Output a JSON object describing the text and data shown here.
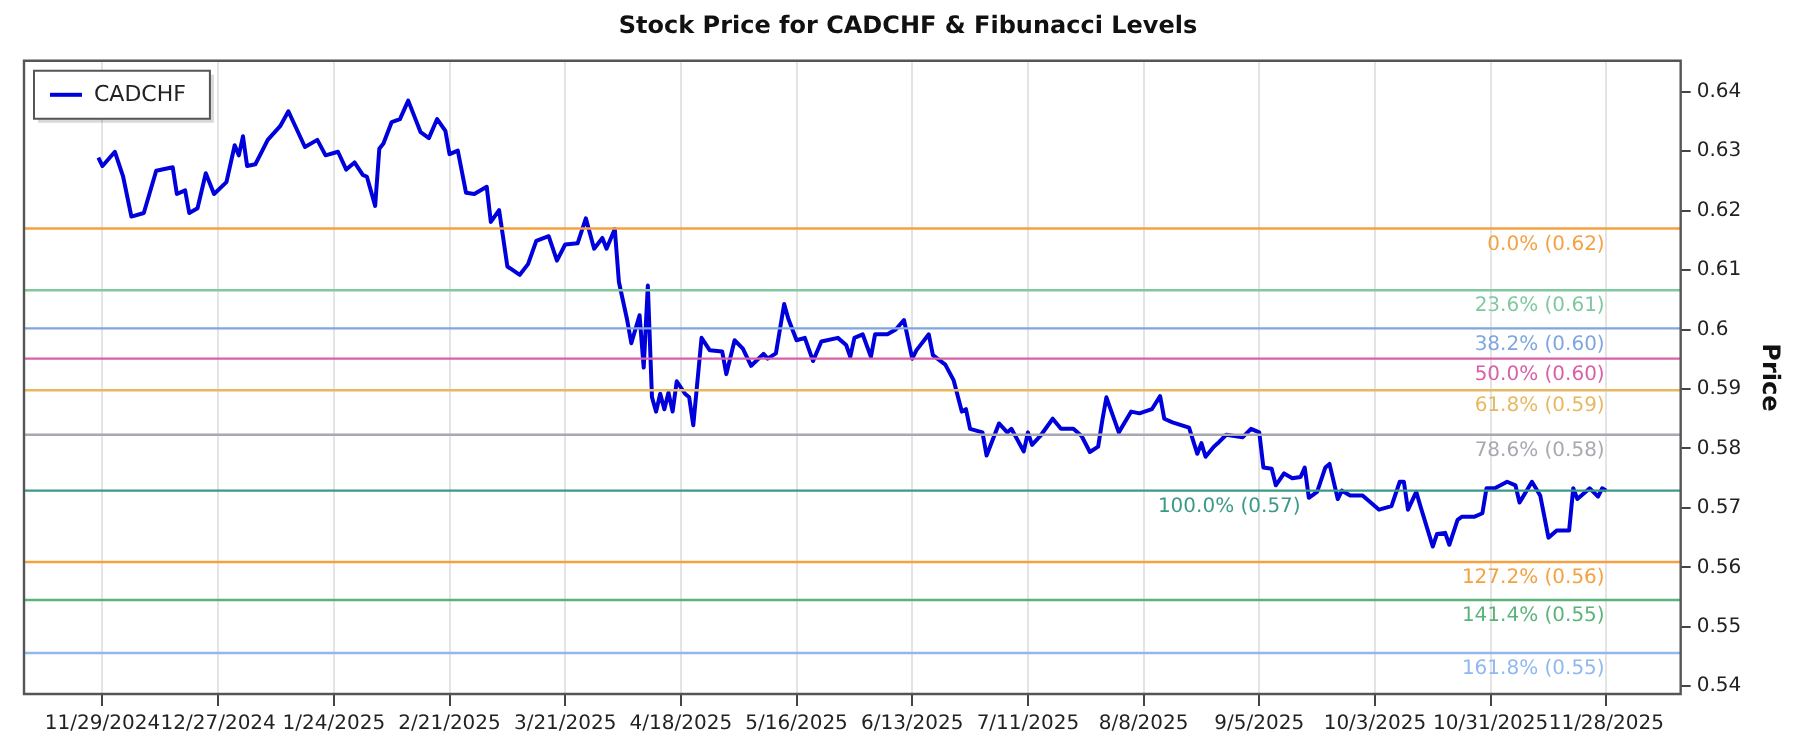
{
  "chart_data": {
    "type": "line",
    "title": "Stock Price for CADCHF & Fibunacci Levels",
    "ylabel": "Price",
    "series": [
      {
        "name": "CADCHF",
        "color": "#0000dd",
        "x": [
          "2024-11-28",
          "2024-11-29",
          "2024-12-02",
          "2024-12-04",
          "2024-12-06",
          "2024-12-09",
          "2024-12-12",
          "2024-12-16",
          "2024-12-17",
          "2024-12-19",
          "2024-12-20",
          "2024-12-22",
          "2024-12-24",
          "2024-12-26",
          "2024-12-29",
          "2024-12-31",
          "2025-01-01",
          "2025-01-02",
          "2025-01-03",
          "2025-01-05",
          "2025-01-08",
          "2025-01-11",
          "2025-01-13",
          "2025-01-14",
          "2025-01-17",
          "2025-01-20",
          "2025-01-22",
          "2025-01-25",
          "2025-01-27",
          "2025-01-29",
          "2025-01-31",
          "2025-02-01",
          "2025-02-03",
          "2025-02-04",
          "2025-02-05",
          "2025-02-07",
          "2025-02-09",
          "2025-02-11",
          "2025-02-14",
          "2025-02-16",
          "2025-02-18",
          "2025-02-20",
          "2025-02-21",
          "2025-02-23",
          "2025-02-25",
          "2025-02-27",
          "2025-03-02",
          "2025-03-03",
          "2025-03-05",
          "2025-03-07",
          "2025-03-10",
          "2025-03-12",
          "2025-03-14",
          "2025-03-17",
          "2025-03-19",
          "2025-03-21",
          "2025-03-24",
          "2025-03-26",
          "2025-03-28",
          "2025-03-30",
          "2025-03-31",
          "2025-04-02",
          "2025-04-03",
          "2025-04-05",
          "2025-04-06",
          "2025-04-08",
          "2025-04-09",
          "2025-04-10",
          "2025-04-11",
          "2025-04-12",
          "2025-04-13",
          "2025-04-14",
          "2025-04-15",
          "2025-04-16",
          "2025-04-17",
          "2025-04-19",
          "2025-04-20",
          "2025-04-21",
          "2025-04-23",
          "2025-04-25",
          "2025-04-28",
          "2025-04-29",
          "2025-05-01",
          "2025-05-03",
          "2025-05-05",
          "2025-05-08",
          "2025-05-09",
          "2025-05-11",
          "2025-05-13",
          "2025-05-14",
          "2025-05-16",
          "2025-05-18",
          "2025-05-20",
          "2025-05-22",
          "2025-05-26",
          "2025-05-28",
          "2025-05-29",
          "2025-05-30",
          "2025-06-01",
          "2025-06-03",
          "2025-06-04",
          "2025-06-07",
          "2025-06-09",
          "2025-06-11",
          "2025-06-13",
          "2025-06-14",
          "2025-06-17",
          "2025-06-18",
          "2025-06-21",
          "2025-06-23",
          "2025-06-25",
          "2025-06-26",
          "2025-06-27",
          "2025-06-30",
          "2025-07-01",
          "2025-07-04",
          "2025-07-06",
          "2025-07-07",
          "2025-07-10",
          "2025-07-11",
          "2025-07-12",
          "2025-07-14",
          "2025-07-17",
          "2025-07-19",
          "2025-07-22",
          "2025-07-24",
          "2025-07-26",
          "2025-07-28",
          "2025-07-29",
          "2025-07-30",
          "2025-08-02",
          "2025-08-05",
          "2025-08-07",
          "2025-08-10",
          "2025-08-12",
          "2025-08-13",
          "2025-08-15",
          "2025-08-19",
          "2025-08-21",
          "2025-08-22",
          "2025-08-23",
          "2025-08-25",
          "2025-08-26",
          "2025-08-28",
          "2025-09-01",
          "2025-09-03",
          "2025-09-05",
          "2025-09-06",
          "2025-09-08",
          "2025-09-09",
          "2025-09-11",
          "2025-09-13",
          "2025-09-15",
          "2025-09-16",
          "2025-09-17",
          "2025-09-19",
          "2025-09-21",
          "2025-09-22",
          "2025-09-24",
          "2025-09-25",
          "2025-09-27",
          "2025-09-30",
          "2025-10-04",
          "2025-10-07",
          "2025-10-09",
          "2025-10-10",
          "2025-10-11",
          "2025-10-13",
          "2025-10-14",
          "2025-10-17",
          "2025-10-18",
          "2025-10-20",
          "2025-10-21",
          "2025-10-23",
          "2025-10-24",
          "2025-10-27",
          "2025-10-29",
          "2025-10-30",
          "2025-11-01",
          "2025-11-04",
          "2025-11-06",
          "2025-11-07",
          "2025-11-10",
          "2025-11-12",
          "2025-11-14",
          "2025-11-16",
          "2025-11-19",
          "2025-11-20",
          "2025-11-21",
          "2025-11-24",
          "2025-11-26",
          "2025-11-27",
          "2025-11-28"
        ],
        "values": [
          0.6289,
          0.6275,
          0.6299,
          0.6257,
          0.619,
          0.6196,
          0.6267,
          0.6273,
          0.6228,
          0.6234,
          0.6196,
          0.6204,
          0.6263,
          0.6228,
          0.6248,
          0.631,
          0.6293,
          0.6325,
          0.6275,
          0.6278,
          0.6319,
          0.6342,
          0.6367,
          0.6352,
          0.6307,
          0.6319,
          0.6293,
          0.6299,
          0.6269,
          0.6281,
          0.626,
          0.6257,
          0.6208,
          0.6304,
          0.6313,
          0.6349,
          0.6354,
          0.6385,
          0.6332,
          0.6322,
          0.6354,
          0.6334,
          0.6295,
          0.6301,
          0.623,
          0.6228,
          0.624,
          0.6181,
          0.6201,
          0.6106,
          0.6092,
          0.611,
          0.6149,
          0.6157,
          0.6116,
          0.6143,
          0.6145,
          0.6187,
          0.6136,
          0.6154,
          0.6136,
          0.6169,
          0.608,
          0.6016,
          0.5977,
          0.6024,
          0.5936,
          0.6074,
          0.5886,
          0.5862,
          0.5892,
          0.5866,
          0.5894,
          0.5862,
          0.5913,
          0.5892,
          0.5886,
          0.5839,
          0.5986,
          0.5965,
          0.5963,
          0.5925,
          0.5982,
          0.5968,
          0.5939,
          0.5959,
          0.5951,
          0.596,
          0.6043,
          0.6018,
          0.5982,
          0.5986,
          0.5947,
          0.598,
          0.5986,
          0.5974,
          0.5954,
          0.5986,
          0.5992,
          0.5954,
          0.5992,
          0.5992,
          0.6,
          0.6016,
          0.5951,
          0.5965,
          0.5992,
          0.5957,
          0.5941,
          0.5915,
          0.5862,
          0.5866,
          0.5833,
          0.5827,
          0.5788,
          0.5842,
          0.5827,
          0.5833,
          0.5795,
          0.5827,
          0.5806,
          0.5821,
          0.585,
          0.5833,
          0.5833,
          0.5821,
          0.5794,
          0.5803,
          0.5847,
          0.5886,
          0.5827,
          0.5862,
          0.5859,
          0.5866,
          0.5888,
          0.585,
          0.5844,
          0.5835,
          0.5791,
          0.5809,
          0.5786,
          0.5803,
          0.5809,
          0.5823,
          0.5819,
          0.5833,
          0.5827,
          0.5768,
          0.5766,
          0.5738,
          0.5758,
          0.575,
          0.5752,
          0.5768,
          0.5717,
          0.5727,
          0.5768,
          0.5774,
          0.5715,
          0.5729,
          0.5721,
          0.5721,
          0.5697,
          0.5703,
          0.5744,
          0.5744,
          0.5697,
          0.5727,
          0.5703,
          0.5635,
          0.5656,
          0.5658,
          0.5638,
          0.568,
          0.5685,
          0.5685,
          0.5691,
          0.5733,
          0.5733,
          0.5744,
          0.5738,
          0.5709,
          0.5744,
          0.5721,
          0.565,
          0.5662,
          0.5662,
          0.5733,
          0.5715,
          0.5733,
          0.5719,
          0.5733,
          0.5729
        ]
      }
    ],
    "xlim": [
      "2024-11-10",
      "2025-12-16"
    ],
    "xticks": [
      {
        "value": "2024-11-29",
        "label": "11/29/2024"
      },
      {
        "value": "2024-12-27",
        "label": "12/27/2024"
      },
      {
        "value": "2025-01-24",
        "label": "1/24/2025"
      },
      {
        "value": "2025-02-21",
        "label": "2/21/2025"
      },
      {
        "value": "2025-03-21",
        "label": "3/21/2025"
      },
      {
        "value": "2025-04-18",
        "label": "4/18/2025"
      },
      {
        "value": "2025-05-16",
        "label": "5/16/2025"
      },
      {
        "value": "2025-06-13",
        "label": "6/13/2025"
      },
      {
        "value": "2025-07-11",
        "label": "7/11/2025"
      },
      {
        "value": "2025-08-08",
        "label": "8/8/2025"
      },
      {
        "value": "2025-09-05",
        "label": "9/5/2025"
      },
      {
        "value": "2025-10-03",
        "label": "10/3/2025"
      },
      {
        "value": "2025-10-31",
        "label": "10/31/2025"
      },
      {
        "value": "2025-11-28",
        "label": "11/28/2025"
      }
    ],
    "ylim": [
      0.5387,
      0.6452
    ],
    "yticks": [
      0.54,
      0.55,
      0.56,
      0.57,
      0.58,
      0.59,
      0.6,
      0.61,
      0.62,
      0.63,
      0.64
    ],
    "ref_lines": [
      {
        "axis": "y",
        "value": 0.617,
        "label": "0.0% (0.62)",
        "color": "#f5a142"
      },
      {
        "axis": "y",
        "value": 0.6066,
        "label": "23.6% (0.61)",
        "color": "#80c8a0"
      },
      {
        "axis": "y",
        "value": 0.6002,
        "label": "38.2% (0.60)",
        "color": "#7ea6e0"
      },
      {
        "axis": "y",
        "value": 0.5951,
        "label": "50.0% (0.60)",
        "color": "#d860a8"
      },
      {
        "axis": "y",
        "value": 0.5898,
        "label": "61.8% (0.59)",
        "color": "#e8b860"
      },
      {
        "axis": "y",
        "value": 0.5823,
        "label": "78.6% (0.58)",
        "color": "#a8a8b0"
      },
      {
        "axis": "y",
        "value": 0.5729,
        "label": "100.0% (0.57)",
        "color": "#3a9a88"
      },
      {
        "axis": "y",
        "value": 0.5609,
        "label": "127.2% (0.56)",
        "color": "#f5a142"
      },
      {
        "axis": "y",
        "value": 0.5545,
        "label": "141.4% (0.55)",
        "color": "#5ab47a"
      },
      {
        "axis": "y",
        "value": 0.5456,
        "label": "161.8% (0.55)",
        "color": "#90b8f0"
      }
    ],
    "grid": "x",
    "legend": "top left",
    "marker": "none",
    "line_style": "solid"
  }
}
